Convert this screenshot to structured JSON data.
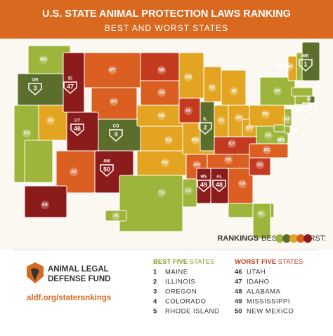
{
  "header": {
    "title": "U.S. STATE ANIMAL PROTECTION LAWS RANKING",
    "subtitle": "BEST AND WORST STATES"
  },
  "map": {
    "states": [
      "WA",
      "OR",
      "CA",
      "NV",
      "ID",
      "MT",
      "WY",
      "UT",
      "CO",
      "AZ",
      "NM",
      "ND",
      "SD",
      "NE",
      "KS",
      "OK",
      "TX",
      "MN",
      "IA",
      "MO",
      "AR",
      "LA",
      "WI",
      "IL",
      "MI",
      "IN",
      "OH",
      "KY",
      "TN",
      "MS",
      "AL",
      "GA",
      "FL",
      "SC",
      "NC",
      "VA",
      "WV",
      "PA",
      "NY",
      "VT",
      "NH",
      "ME",
      "MA",
      "RI",
      "CT",
      "NJ",
      "DE",
      "MD",
      "AK",
      "HI"
    ],
    "badges": [
      {
        "state": "ME",
        "rank": 1
      },
      {
        "state": "IL",
        "rank": 2
      },
      {
        "state": "OR",
        "rank": 3
      },
      {
        "state": "CO",
        "rank": 4
      },
      {
        "state": "RI",
        "rank": 5
      },
      {
        "state": "UT",
        "rank": 46
      },
      {
        "state": "ID",
        "rank": 47
      },
      {
        "state": "AL",
        "rank": 48
      },
      {
        "state": "MS",
        "rank": 49
      },
      {
        "state": "NM",
        "rank": 50
      }
    ]
  },
  "legend": {
    "label": "RANKINGS",
    "text": "BEST TO WORST:"
  },
  "best": {
    "heading": "BEST FIVE",
    "suffix": "STATES",
    "items": [
      {
        "rank": 1,
        "name": "MAINE"
      },
      {
        "rank": 2,
        "name": "ILLINOIS"
      },
      {
        "rank": 3,
        "name": "OREGON"
      },
      {
        "rank": 4,
        "name": "COLORADO"
      },
      {
        "rank": 5,
        "name": "RHODE ISLAND"
      }
    ]
  },
  "worst": {
    "heading": "WORST FIVE",
    "suffix": "STATES",
    "items": [
      {
        "rank": 46,
        "name": "UTAH"
      },
      {
        "rank": 47,
        "name": "IDAHO"
      },
      {
        "rank": 48,
        "name": "ALABAMA"
      },
      {
        "rank": 49,
        "name": "MISSISSIPPI"
      },
      {
        "rank": 50,
        "name": "NEW MEXICO"
      }
    ]
  },
  "logo": {
    "line1": "ANIMAL LEGAL",
    "line2": "DEFENSE FUND"
  },
  "url": "aldf.org/staterankings"
}
